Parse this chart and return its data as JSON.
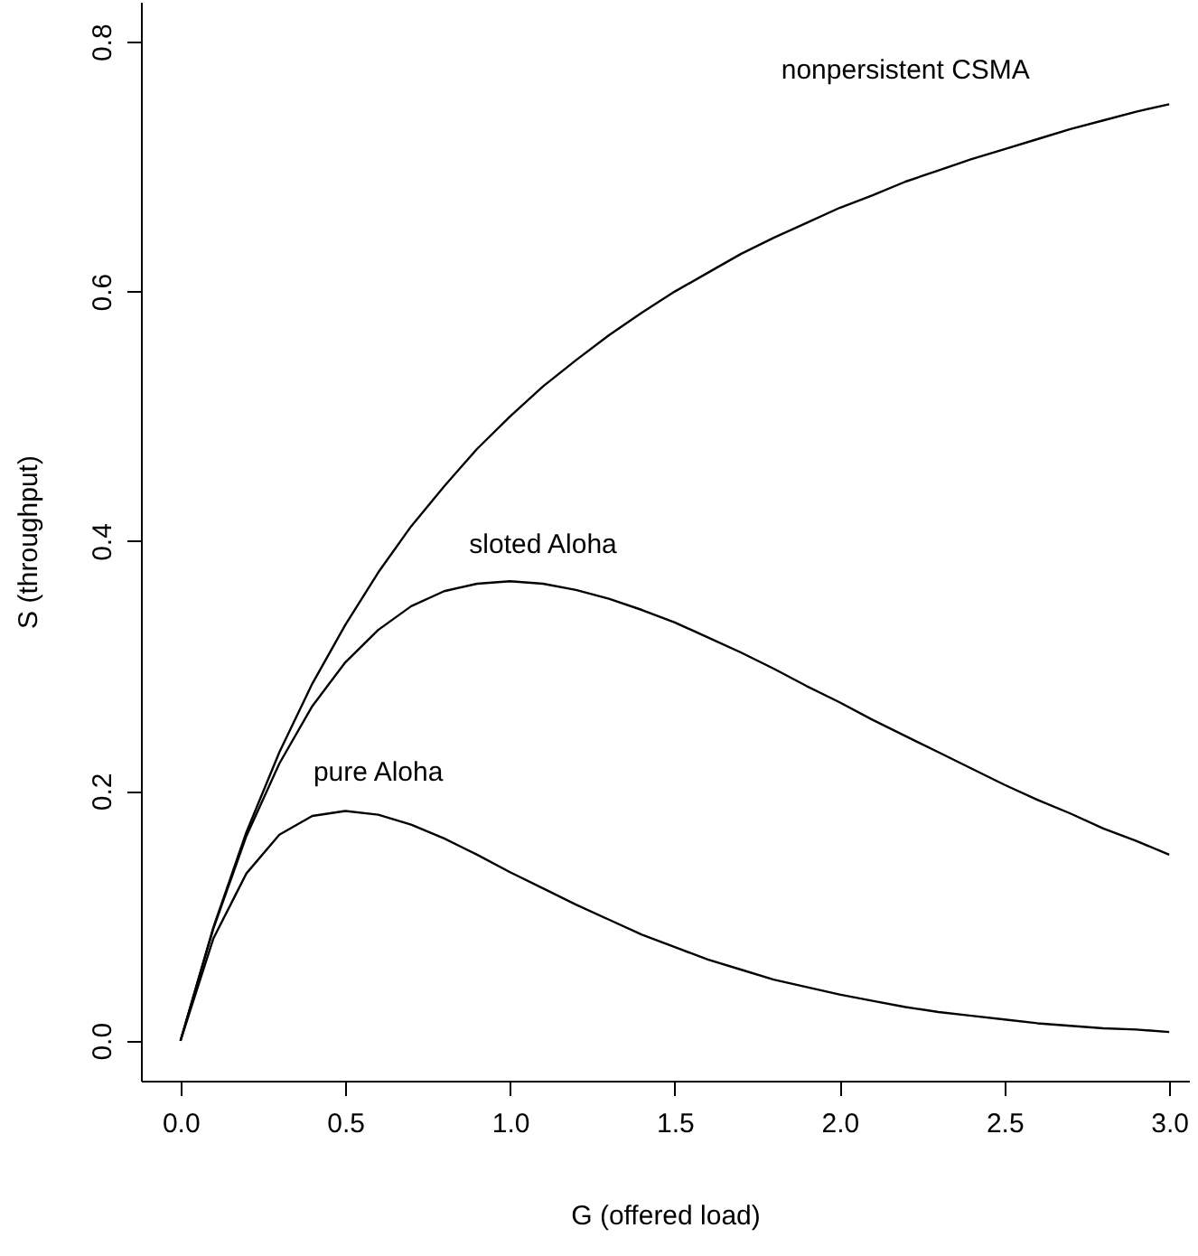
{
  "chart_data": {
    "type": "line",
    "xlabel": "G (offered load)",
    "ylabel": "S (throughput)",
    "x": [
      0,
      0.1,
      0.2,
      0.3,
      0.4,
      0.5,
      0.6,
      0.7,
      0.8,
      0.9,
      1.0,
      1.1,
      1.2,
      1.3,
      1.4,
      1.5,
      1.6,
      1.7,
      1.8,
      1.9,
      2.0,
      2.1,
      2.2,
      2.3,
      2.4,
      2.5,
      2.6,
      2.7,
      2.8,
      2.9,
      3.0
    ],
    "series": [
      {
        "name": "nonpersistent CSMA",
        "color": "#000000",
        "values": [
          0,
          0.091,
          0.167,
          0.231,
          0.286,
          0.333,
          0.375,
          0.412,
          0.444,
          0.474,
          0.5,
          0.524,
          0.545,
          0.565,
          0.583,
          0.6,
          0.615,
          0.63,
          0.643,
          0.655,
          0.667,
          0.677,
          0.688,
          0.697,
          0.706,
          0.714,
          0.722,
          0.73,
          0.737,
          0.744,
          0.75
        ]
      },
      {
        "name": "sloted Aloha",
        "color": "#000000",
        "values": [
          0,
          0.09,
          0.164,
          0.222,
          0.268,
          0.303,
          0.329,
          0.348,
          0.36,
          0.366,
          0.368,
          0.366,
          0.361,
          0.354,
          0.345,
          0.335,
          0.323,
          0.311,
          0.298,
          0.284,
          0.271,
          0.257,
          0.244,
          0.231,
          0.218,
          0.205,
          0.193,
          0.182,
          0.17,
          0.16,
          0.149
        ]
      },
      {
        "name": "pure Aloha",
        "color": "#000000",
        "values": [
          0,
          0.082,
          0.134,
          0.165,
          0.18,
          0.184,
          0.181,
          0.173,
          0.162,
          0.149,
          0.135,
          0.122,
          0.109,
          0.097,
          0.085,
          0.075,
          0.065,
          0.057,
          0.049,
          0.043,
          0.037,
          0.032,
          0.027,
          0.023,
          0.02,
          0.017,
          0.014,
          0.012,
          0.01,
          0.009,
          0.007
        ]
      }
    ],
    "xlim": [
      -0.12,
      3.06
    ],
    "ylim": [
      -0.032,
      0.832
    ],
    "xticks": [
      {
        "value": 0,
        "label": "0.0"
      },
      {
        "value": 0.5,
        "label": "0.5"
      },
      {
        "value": 1,
        "label": "1.0"
      },
      {
        "value": 1.5,
        "label": "1.5"
      },
      {
        "value": 2,
        "label": "2.0"
      },
      {
        "value": 2.5,
        "label": "2.5"
      },
      {
        "value": 3,
        "label": "3.0"
      }
    ],
    "yticks": [
      {
        "value": 0,
        "label": "0.0"
      },
      {
        "value": 0.2,
        "label": "0.2"
      },
      {
        "value": 0.4,
        "label": "0.4"
      },
      {
        "value": 0.6,
        "label": "0.6"
      },
      {
        "value": 0.8,
        "label": "0.8"
      }
    ],
    "line_style": "solid"
  }
}
